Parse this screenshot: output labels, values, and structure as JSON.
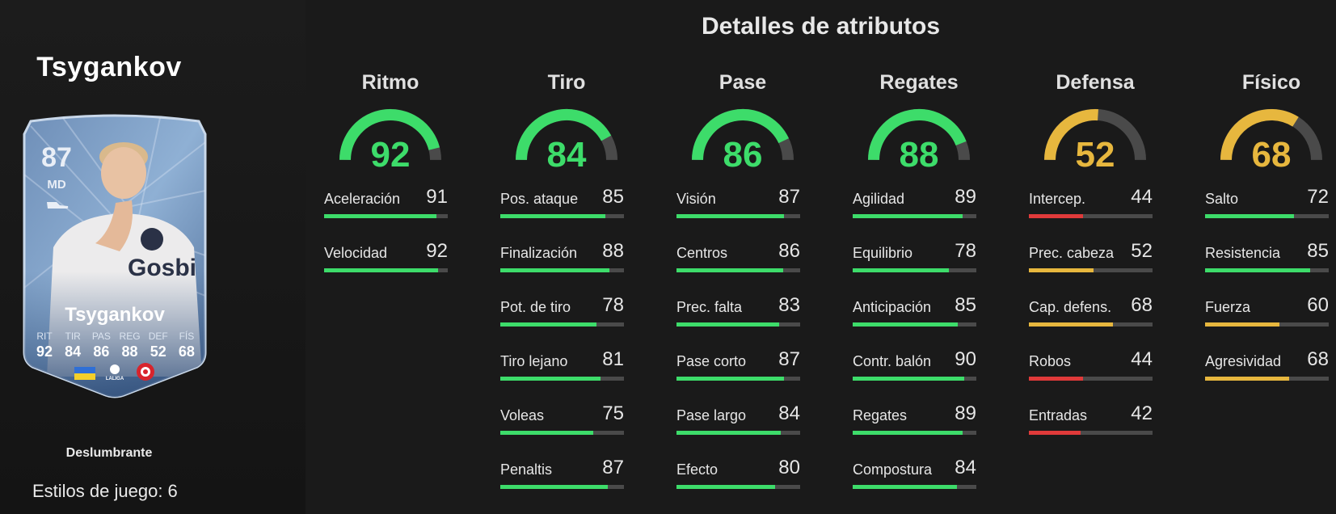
{
  "player": {
    "name": "Tsygankov",
    "rarity": "Deslumbrante",
    "playstyles_label": "Estilos de juego: 6"
  },
  "card": {
    "overall": "87",
    "position": "MD",
    "name": "Tsygankov",
    "stats": [
      {
        "label": "RIT",
        "value": "92"
      },
      {
        "label": "TIR",
        "value": "84"
      },
      {
        "label": "PAS",
        "value": "86"
      },
      {
        "label": "REG",
        "value": "88"
      },
      {
        "label": "DEF",
        "value": "52"
      },
      {
        "label": "FÍS",
        "value": "68"
      }
    ],
    "league_text": "LALIGA"
  },
  "attributes_title": "Detalles de atributos",
  "colors": {
    "high": "#3ddc6a",
    "medium": "#e7b73e",
    "low": "#e03a3a",
    "track": "#4a4a4a"
  },
  "categories": [
    {
      "name": "Ritmo",
      "value": 92,
      "stats": [
        {
          "name": "Aceleración",
          "value": 91
        },
        {
          "name": "Velocidad",
          "value": 92
        }
      ]
    },
    {
      "name": "Tiro",
      "value": 84,
      "stats": [
        {
          "name": "Pos. ataque",
          "value": 85
        },
        {
          "name": "Finalización",
          "value": 88
        },
        {
          "name": "Pot. de tiro",
          "value": 78
        },
        {
          "name": "Tiro lejano",
          "value": 81
        },
        {
          "name": "Voleas",
          "value": 75
        },
        {
          "name": "Penaltis",
          "value": 87
        }
      ]
    },
    {
      "name": "Pase",
      "value": 86,
      "stats": [
        {
          "name": "Visión",
          "value": 87
        },
        {
          "name": "Centros",
          "value": 86
        },
        {
          "name": "Prec. falta",
          "value": 83
        },
        {
          "name": "Pase corto",
          "value": 87
        },
        {
          "name": "Pase largo",
          "value": 84
        },
        {
          "name": "Efecto",
          "value": 80
        }
      ]
    },
    {
      "name": "Regates",
      "value": 88,
      "stats": [
        {
          "name": "Agilidad",
          "value": 89
        },
        {
          "name": "Equilibrio",
          "value": 78
        },
        {
          "name": "Anticipación",
          "value": 85
        },
        {
          "name": "Contr. balón",
          "value": 90
        },
        {
          "name": "Regates",
          "value": 89
        },
        {
          "name": "Compostura",
          "value": 84
        }
      ]
    },
    {
      "name": "Defensa",
      "value": 52,
      "stats": [
        {
          "name": "Intercep.",
          "value": 44
        },
        {
          "name": "Prec. cabeza",
          "value": 52
        },
        {
          "name": "Cap. defens.",
          "value": 68
        },
        {
          "name": "Robos",
          "value": 44
        },
        {
          "name": "Entradas",
          "value": 42
        }
      ]
    },
    {
      "name": "Físico",
      "value": 68,
      "stats": [
        {
          "name": "Salto",
          "value": 72
        },
        {
          "name": "Resistencia",
          "value": 85
        },
        {
          "name": "Fuerza",
          "value": 60
        },
        {
          "name": "Agresividad",
          "value": 68
        }
      ]
    }
  ]
}
